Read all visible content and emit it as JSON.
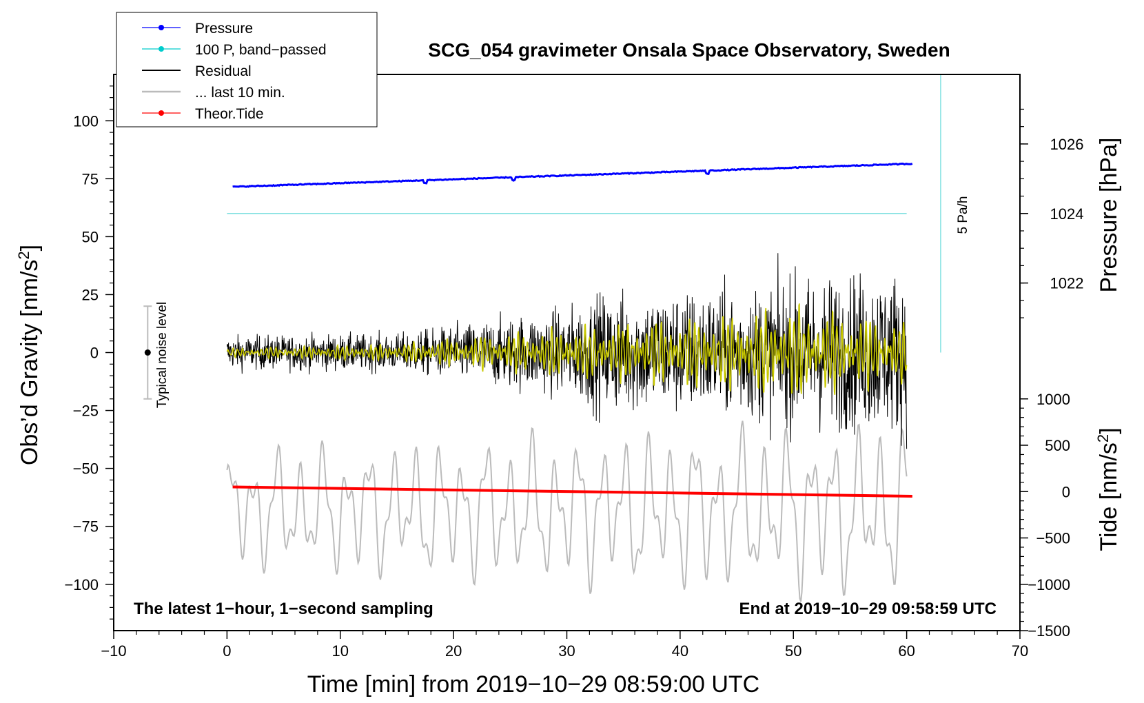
{
  "chart_data": {
    "type": "line",
    "title": "SCG_054 gravimeter Onsala Space Observatory, Sweden",
    "xlabel": "Time [min] from 2019−10−29 08:59:00 UTC",
    "ylabel_left_prefix": "Obs’d Gravity [nm/s",
    "ylabel_left_suffix": "]",
    "ylabel_right_pressure": "Pressure [hPa]",
    "ylabel_right_tide_prefix": "Tide [nm/s",
    "ylabel_right_tide_suffix": "]",
    "superscript": "2",
    "xlim": [
      -10,
      70
    ],
    "ylim_left": [
      -120,
      120
    ],
    "x_ticks": [
      -10,
      0,
      10,
      20,
      30,
      40,
      50,
      60,
      70
    ],
    "x_tick_labels": [
      "−10",
      "0",
      "10",
      "20",
      "30",
      "40",
      "50",
      "60",
      "70"
    ],
    "y_ticks_left": [
      100,
      75,
      50,
      25,
      0,
      -25,
      -50,
      -75,
      -100
    ],
    "y_tick_labels_left": [
      "100",
      "75",
      "50",
      "25",
      "0",
      "−25",
      "−50",
      "−75",
      "−100"
    ],
    "pressure_axis": {
      "ticks": [
        1026,
        1024,
        1022
      ],
      "tick_labels": [
        "1026",
        "1024",
        "1022"
      ],
      "gravity_equiv": [
        90,
        60,
        30
      ]
    },
    "tide_axis": {
      "ticks": [
        1000,
        500,
        0,
        -500,
        -1000,
        -1500
      ],
      "tick_labels": [
        "1000",
        "500",
        "0",
        "−500",
        "−1000",
        "−1500"
      ],
      "gravity_equiv": [
        -20,
        -40,
        -60,
        -80,
        -100,
        -120
      ]
    },
    "legend": [
      {
        "label": "Pressure",
        "color": "#0000ff",
        "marker": true
      },
      {
        "label": "100 P, band−passed",
        "color": "#00cccc",
        "marker": true
      },
      {
        "label": "Residual",
        "color": "#000000",
        "marker": false
      },
      {
        "label": "... last 10 min.",
        "color": "#bbbbbb",
        "marker": false
      },
      {
        "label": "Theor.Tide",
        "color": "#ff0000",
        "marker": true
      }
    ],
    "series": [
      {
        "name": "Pressure",
        "color": "#0000ff",
        "x_start": 0.5,
        "x_end": 60.5,
        "y_start": 71.5,
        "y_end": 81.5,
        "approx": true
      },
      {
        "name": "100 P, band-passed",
        "color": "#80e0e0",
        "x_start": 0,
        "x_end": 60,
        "y_constant": 60
      },
      {
        "name": "Residual",
        "color": "#000000",
        "x_start": 0,
        "x_end": 60,
        "envelope": [
          [
            0,
            9
          ],
          [
            15,
            10
          ],
          [
            30,
            24
          ],
          [
            33,
            32
          ],
          [
            45,
            34
          ],
          [
            50,
            40
          ],
          [
            60,
            44
          ]
        ],
        "approx": true
      },
      {
        "name": "Residual filtered",
        "color": "#c8c800",
        "x_start": 0,
        "x_end": 60,
        "envelope": [
          [
            0,
            2
          ],
          [
            15,
            4
          ],
          [
            30,
            12
          ],
          [
            45,
            18
          ],
          [
            50,
            22
          ],
          [
            60,
            14
          ]
        ],
        "approx": true
      },
      {
        "name": "... last 10 min.",
        "color": "#bbbbbb",
        "x_start": 0,
        "x_end": 60,
        "center": -68,
        "amplitude": 30,
        "approx": true
      },
      {
        "name": "Theor.Tide",
        "color": "#ff0000",
        "x_start": 0.5,
        "x_end": 60.5,
        "y_start": -58,
        "y_end": -62
      }
    ],
    "noise_indicator": {
      "label": "Typical noise level",
      "x": -7,
      "y": 0,
      "range": 20
    },
    "rate_indicator": {
      "label": "5 Pa/h",
      "x": 63,
      "y_top": 120,
      "y_bottom": 0
    },
    "annotation_left": "The latest 1−hour, 1−second sampling",
    "annotation_right": "End at 2019−10−29 09:58:59 UTC"
  }
}
